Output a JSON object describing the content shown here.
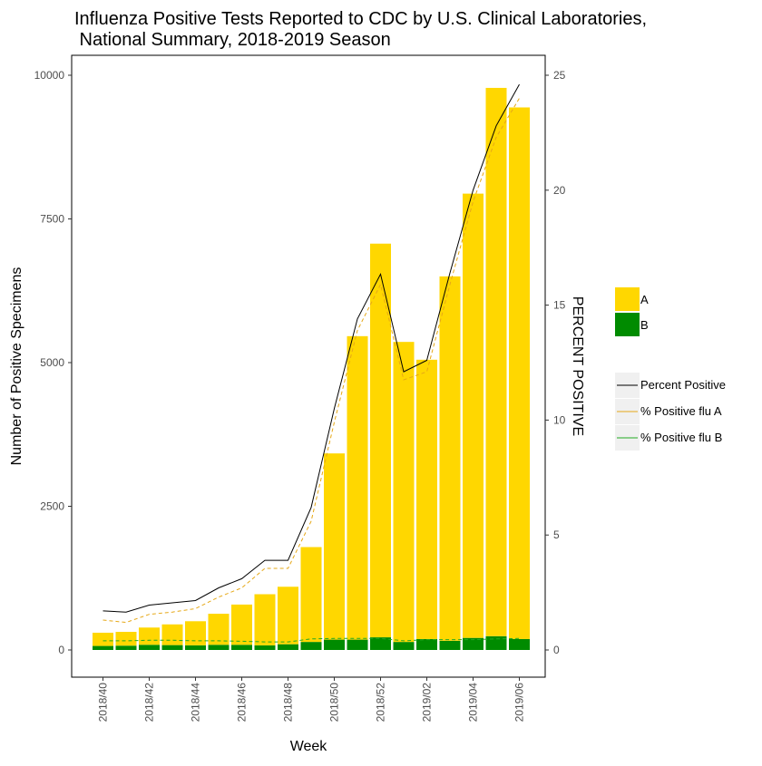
{
  "chart_data": {
    "type": "bar",
    "title_line1": "Influenza Positive Tests Reported to CDC by U.S. Clinical Laboratories,",
    "title_line2": " National Summary, 2018-2019 Season",
    "xlabel": "Week",
    "ylabel": "Number of Positive Specimens",
    "y2label": "PERCENT POSITIVE",
    "ylim": [
      0,
      10000
    ],
    "y2lim": [
      0,
      25
    ],
    "yticks": [
      0,
      2500,
      5000,
      7500,
      10000
    ],
    "y2ticks": [
      0,
      5,
      10,
      15,
      20,
      25
    ],
    "grid": false,
    "legend_position": "right",
    "categories": [
      "2018/40",
      "2018/41",
      "2018/42",
      "2018/43",
      "2018/44",
      "2018/45",
      "2018/46",
      "2018/47",
      "2018/48",
      "2018/49",
      "2018/50",
      "2018/51",
      "2018/52",
      "2019/01",
      "2019/02",
      "2019/03",
      "2019/04",
      "2019/05",
      "2019/06"
    ],
    "tick_labels": [
      "2018/40",
      "2018/42",
      "2018/44",
      "2018/46",
      "2018/48",
      "2018/50",
      "2018/52",
      "2019/02",
      "2019/04",
      "2019/06"
    ],
    "bar_series": [
      {
        "name": "A",
        "color": "#FFD700",
        "values": [
          230,
          240,
          300,
          360,
          420,
          540,
          700,
          890,
          1000,
          1650,
          3240,
          5280,
          6850,
          5220,
          4860,
          6340,
          7730,
          9540,
          9250
        ]
      },
      {
        "name": "B",
        "color": "#008B00",
        "values": [
          70,
          75,
          90,
          85,
          80,
          90,
          90,
          80,
          100,
          140,
          180,
          180,
          220,
          140,
          190,
          160,
          210,
          240,
          190
        ]
      }
    ],
    "line_series": [
      {
        "name": "Percent Positive",
        "color": "#000000",
        "dash": "solid",
        "values": [
          1.7,
          1.65,
          1.95,
          2.05,
          2.15,
          2.7,
          3.1,
          3.9,
          3.9,
          6.2,
          10.5,
          14.4,
          16.35,
          12.1,
          12.6,
          16.4,
          20.0,
          22.8,
          24.6
        ]
      },
      {
        "name": "% Positive flu A",
        "color": "#E6A817",
        "dash": "dashed",
        "values": [
          1.3,
          1.2,
          1.55,
          1.65,
          1.8,
          2.3,
          2.7,
          3.55,
          3.55,
          5.6,
          9.9,
          13.9,
          15.9,
          11.75,
          12.1,
          15.9,
          19.5,
          22.3,
          24.0
        ]
      },
      {
        "name": "% Positive flu B",
        "color": "#22AA22",
        "dash": "dashed",
        "values": [
          0.4,
          0.4,
          0.42,
          0.42,
          0.4,
          0.4,
          0.38,
          0.35,
          0.35,
          0.48,
          0.5,
          0.5,
          0.5,
          0.4,
          0.45,
          0.45,
          0.45,
          0.48,
          0.5
        ]
      }
    ]
  }
}
